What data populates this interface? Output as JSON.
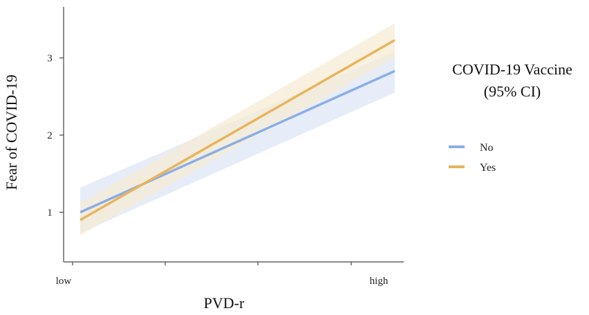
{
  "chart_data": {
    "type": "line",
    "xlabel": "PVD-r",
    "ylabel": "Fear of COVID-19",
    "x_tick_labels": [
      "low",
      "high"
    ],
    "y_ticks": [
      1,
      2,
      3
    ],
    "y_tick_labels": [
      "1",
      "2",
      "3"
    ],
    "ylim": [
      0.3,
      3.65
    ],
    "grid": false,
    "legend": {
      "title_line1": "COVID-19 Vaccine",
      "title_line2": "(95% CI)",
      "placement": "right"
    },
    "series": [
      {
        "name": "No",
        "color": "#8aaee6",
        "band_color": "#dce6f7",
        "x": [
          "low",
          "high"
        ],
        "values": [
          1.0,
          2.83
        ],
        "ci_lower": [
          0.73,
          2.55
        ],
        "ci_upper": [
          1.32,
          3.08
        ]
      },
      {
        "name": "Yes",
        "color": "#e8b45c",
        "band_color": "#f7ebd3",
        "x": [
          "low",
          "high"
        ],
        "values": [
          0.9,
          3.23
        ],
        "ci_lower": [
          0.7,
          3.0
        ],
        "ci_upper": [
          1.12,
          3.45
        ]
      }
    ]
  }
}
